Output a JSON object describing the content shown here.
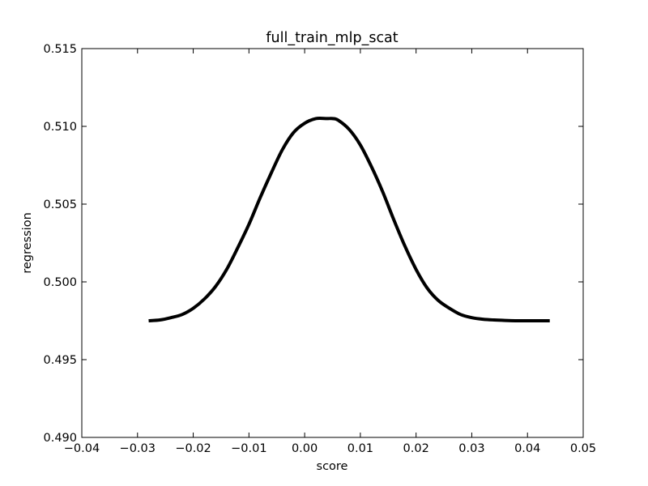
{
  "chart_data": {
    "type": "line",
    "title": "full_train_mlp_scat",
    "xlabel": "score",
    "ylabel": "regression",
    "xlim": [
      -0.04,
      0.05
    ],
    "ylim": [
      0.49,
      0.515
    ],
    "xticks": [
      -0.04,
      -0.03,
      -0.02,
      -0.01,
      0.0,
      0.01,
      0.02,
      0.03,
      0.04,
      0.05
    ],
    "xtick_labels": [
      "−0.04",
      "−0.03",
      "−0.02",
      "−0.01",
      "0.00",
      "0.01",
      "0.02",
      "0.03",
      "0.04",
      "0.05"
    ],
    "yticks": [
      0.49,
      0.495,
      0.5,
      0.505,
      0.51,
      0.515
    ],
    "ytick_labels": [
      "0.490",
      "0.495",
      "0.500",
      "0.505",
      "0.510",
      "0.515"
    ],
    "grid": false,
    "series": [
      {
        "color": "#000000",
        "x": [
          -0.028,
          -0.026,
          -0.024,
          -0.022,
          -0.02,
          -0.018,
          -0.016,
          -0.014,
          -0.012,
          -0.01,
          -0.008,
          -0.006,
          -0.004,
          -0.002,
          0.0,
          0.002,
          0.004,
          0.005,
          0.006,
          0.008,
          0.01,
          0.012,
          0.014,
          0.016,
          0.018,
          0.02,
          0.022,
          0.024,
          0.026,
          0.028,
          0.03,
          0.032,
          0.034,
          0.036,
          0.038,
          0.04,
          0.042,
          0.044
        ],
        "y": [
          0.4975,
          0.49755,
          0.4977,
          0.4979,
          0.4983,
          0.4989,
          0.4997,
          0.5008,
          0.5022,
          0.5037,
          0.5054,
          0.507,
          0.5085,
          0.5096,
          0.5102,
          0.5105,
          0.5105,
          0.5105,
          0.5104,
          0.5098,
          0.5088,
          0.5074,
          0.5058,
          0.504,
          0.5023,
          0.5008,
          0.4996,
          0.4988,
          0.4983,
          0.4979,
          0.4977,
          0.4976,
          0.49755,
          0.49752,
          0.4975,
          0.4975,
          0.4975,
          0.4975
        ]
      }
    ]
  }
}
